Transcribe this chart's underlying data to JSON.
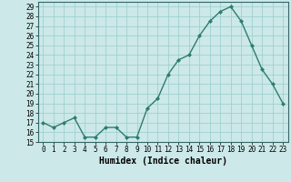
{
  "x": [
    0,
    1,
    2,
    3,
    4,
    5,
    6,
    7,
    8,
    9,
    10,
    11,
    12,
    13,
    14,
    15,
    16,
    17,
    18,
    19,
    20,
    21,
    22,
    23
  ],
  "y": [
    17,
    16.5,
    17,
    17.5,
    15.5,
    15.5,
    16.5,
    16.5,
    15.5,
    15.5,
    18.5,
    19.5,
    22,
    23.5,
    24,
    26,
    27.5,
    28.5,
    29,
    27.5,
    25,
    22.5,
    21,
    19
  ],
  "xlabel": "Humidex (Indice chaleur)",
  "ylim": [
    15,
    29.5
  ],
  "xlim": [
    -0.5,
    23.5
  ],
  "yticks": [
    15,
    16,
    17,
    18,
    19,
    20,
    21,
    22,
    23,
    24,
    25,
    26,
    27,
    28,
    29
  ],
  "xticks": [
    0,
    1,
    2,
    3,
    4,
    5,
    6,
    7,
    8,
    9,
    10,
    11,
    12,
    13,
    14,
    15,
    16,
    17,
    18,
    19,
    20,
    21,
    22,
    23
  ],
  "line_color": "#2e7d6e",
  "marker_color": "#2e7d6e",
  "bg_color": "#cce8e8",
  "grid_color": "#99cccc"
}
